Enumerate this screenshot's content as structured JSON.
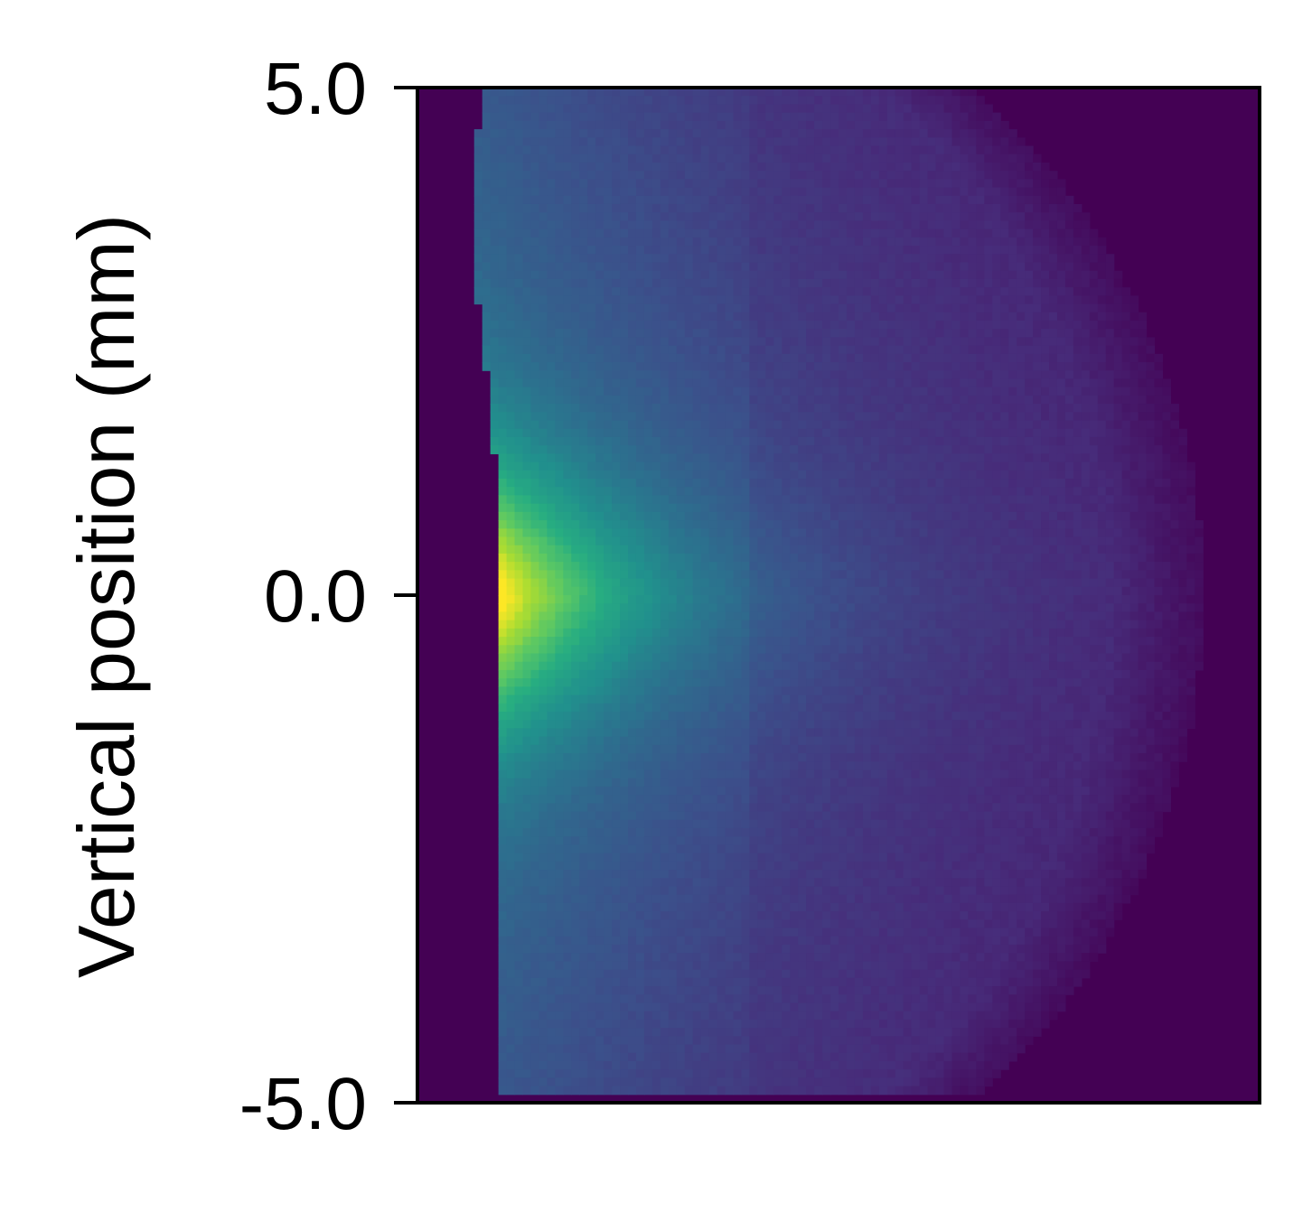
{
  "chart_data": {
    "type": "heatmap",
    "title": "",
    "xlabel": "",
    "ylabel": "Vertical position (mm)",
    "ylim": [
      -5.0,
      5.0
    ],
    "yticks": [
      5.0,
      0.0,
      -5.0
    ],
    "ytick_labels": [
      "5.0",
      "0.0",
      "-5.0"
    ],
    "xticks": [],
    "colormap": "viridis",
    "background_color": "#440154",
    "peak": {
      "vertical_position": 0.0,
      "intensity": 1.0,
      "color": "#fde725"
    },
    "description_of_values": "intensity normalized 0-1; brightest along left edge near 0.0 mm, decaying to the right and toward ±5 mm",
    "grid": false,
    "legend": "none"
  }
}
